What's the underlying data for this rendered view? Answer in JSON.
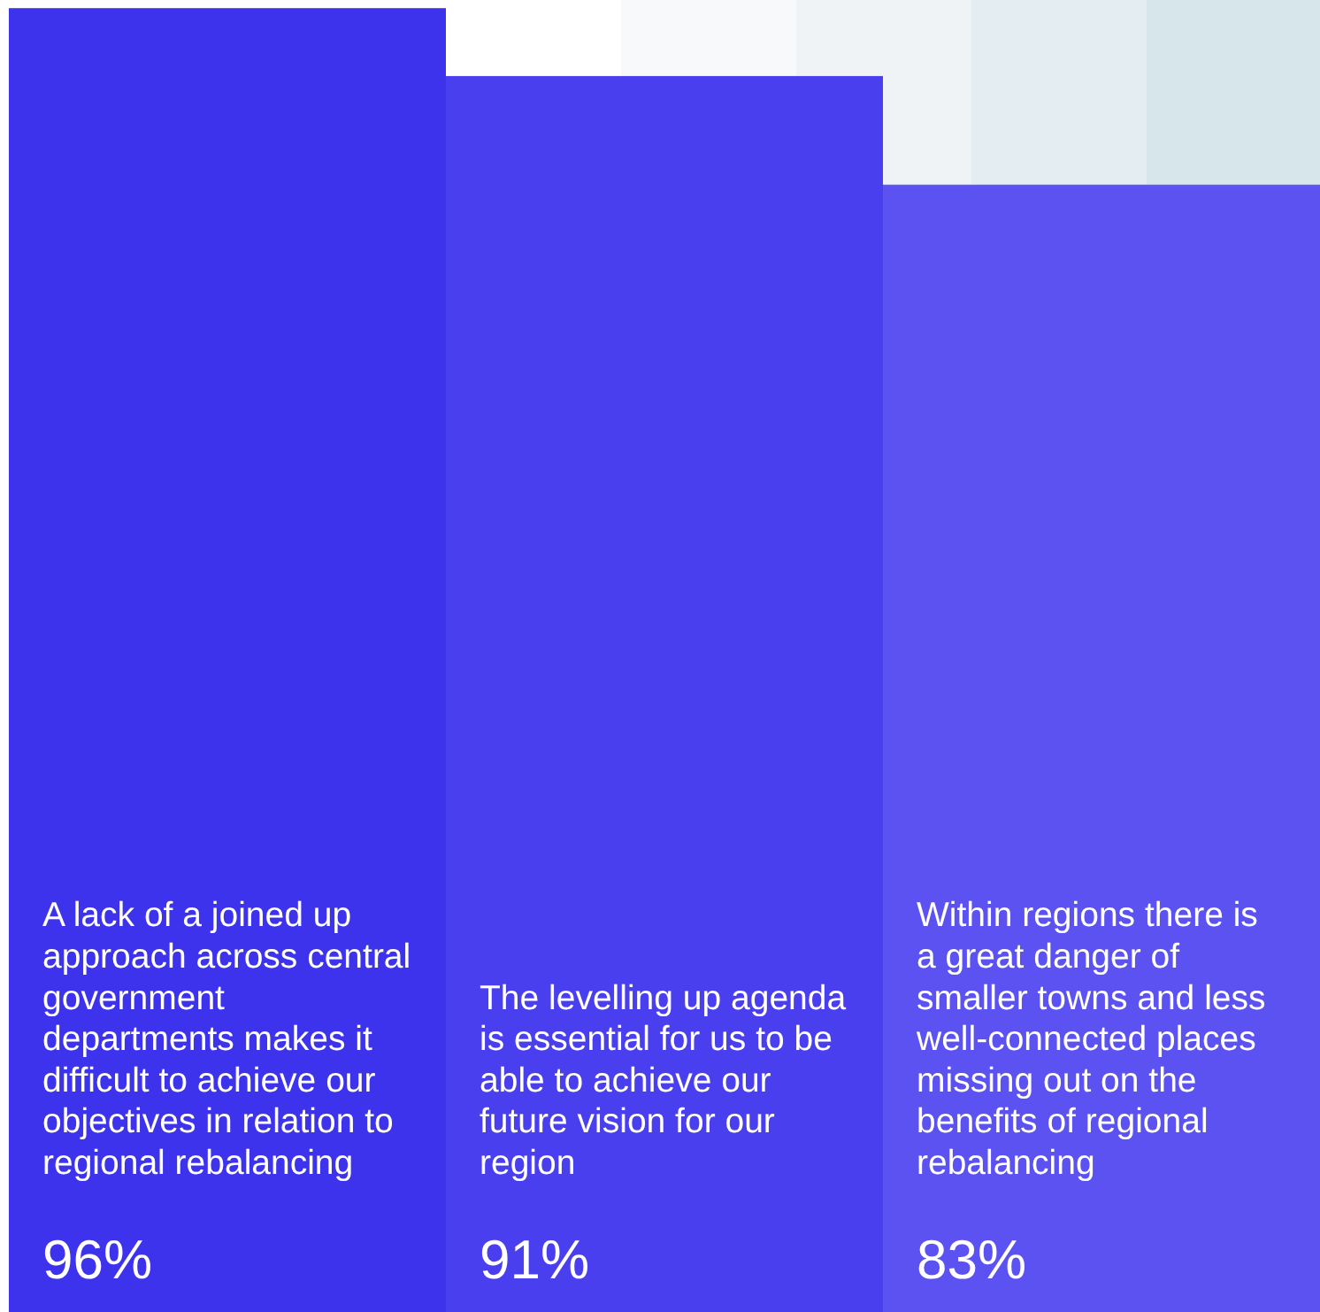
{
  "chart_data": {
    "type": "bar",
    "categories": [
      "A lack of a joined up approach across central government departments makes it difficult to achieve our objectives in relation to regional rebalancing",
      "The levelling up agenda is essential for us to be able to achieve our future vision for our region",
      "Within regions there is a great danger of smaller towns and less well-connected places missing out on the benefits of regional rebalancing"
    ],
    "values": [
      96,
      91,
      83
    ],
    "colors": [
      "#3d33ec",
      "#4a3fef",
      "#5c52f1"
    ],
    "value_labels": [
      "96%",
      "91%",
      "83%"
    ],
    "ylim": [
      0,
      96.6
    ]
  }
}
